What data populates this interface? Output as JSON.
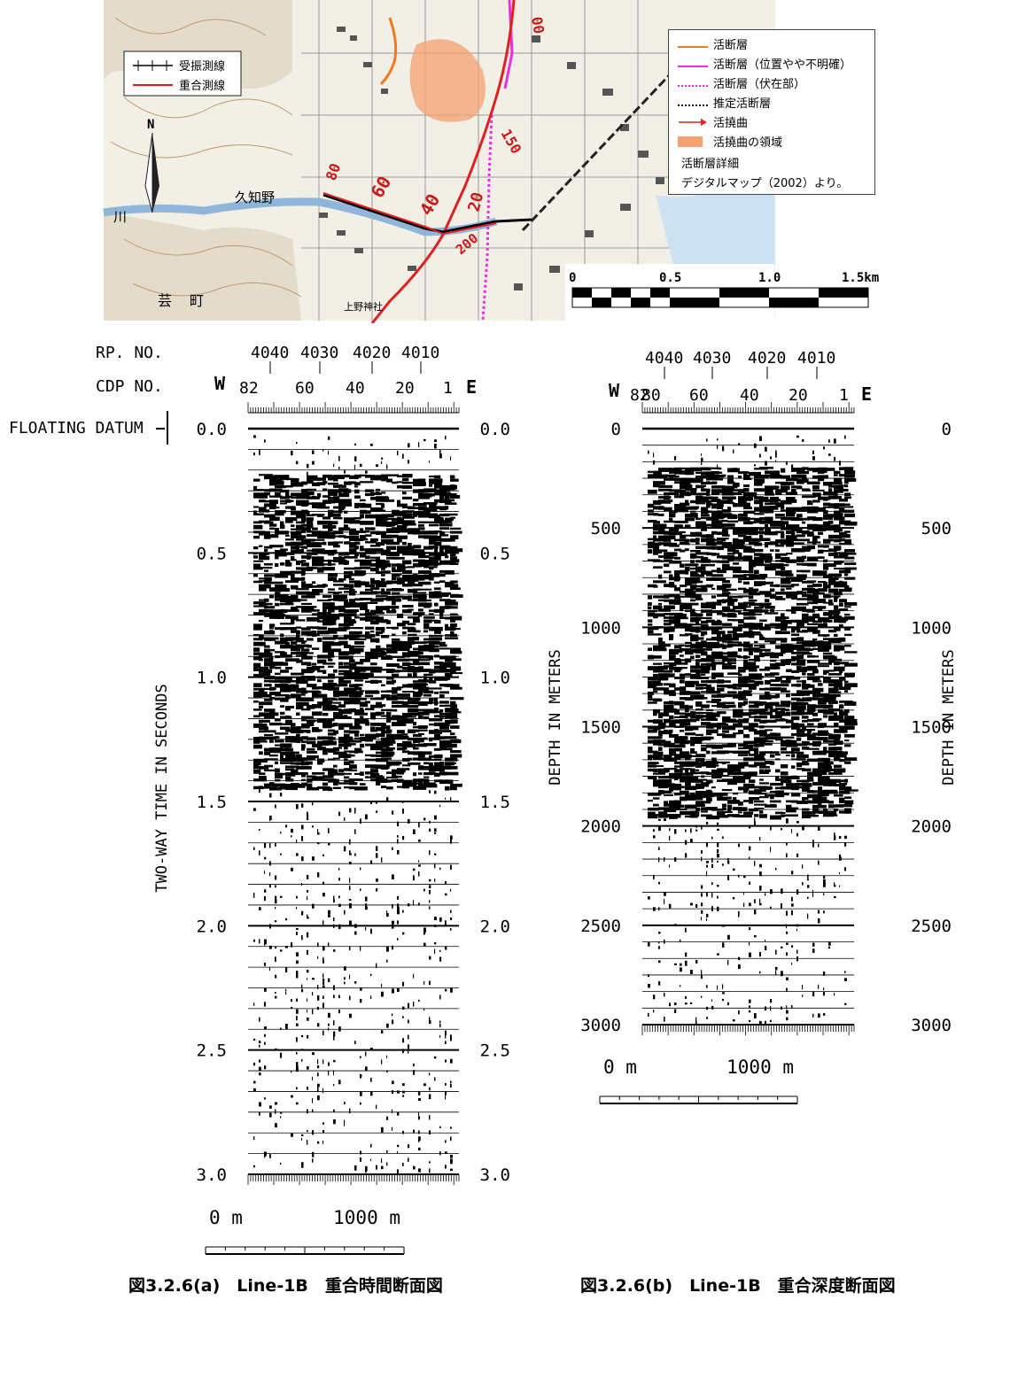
{
  "map": {
    "place_labels": [
      "久知野",
      "川",
      "芸",
      "町",
      "上野神社"
    ],
    "fault_strikes": [
      "60",
      "40",
      "20",
      "200",
      "150",
      "80",
      "00"
    ],
    "north_label": "N",
    "inset_legend": {
      "shot_line": "受振測線",
      "stack_line": "重合測線"
    },
    "legend": {
      "items": [
        {
          "label": "活断層",
          "color": "#ee7a22",
          "style": "solid"
        },
        {
          "label": "活断層（位置やや不明確）",
          "color": "#e830e0",
          "style": "solid"
        },
        {
          "label": "活断層（伏在部）",
          "color": "#e830e0",
          "style": "dotted"
        },
        {
          "label": "推定活断層",
          "color": "#000000",
          "style": "dotted"
        },
        {
          "label": "活撓曲",
          "color": "#e02020",
          "style": "arrow"
        },
        {
          "label": "活撓曲の領域",
          "color": "#f4a070",
          "style": "fill"
        }
      ],
      "note1": "活断層詳細",
      "note2": "デジタルマップ（2002）より。"
    },
    "scale": {
      "ticks": [
        "0",
        "0.5",
        "1.0",
        "1.5km"
      ]
    }
  },
  "time_section": {
    "rp_label": "RP. NO.",
    "cdp_label": "CDP NO.",
    "datum_label": "FLOATING DATUM",
    "west": "W",
    "east": "E",
    "rp_ticks": [
      "4040",
      "4030",
      "4020",
      "4010"
    ],
    "cdp_ticks": [
      "82",
      "60",
      "40",
      "20",
      "1"
    ],
    "y_ticks": [
      "0.0",
      "0.5",
      "1.0",
      "1.5",
      "2.0",
      "2.5",
      "3.0"
    ],
    "ylabel": "TWO-WAY TIME IN SECONDS",
    "ylim": [
      0,
      3.0
    ],
    "scale_left": "0  m",
    "scale_right": "1000  m",
    "caption": "図3.2.6(a)　Line-1B　重合時間断面図"
  },
  "depth_section": {
    "west": "W",
    "east": "E",
    "rp_ticks": [
      "4040",
      "4030",
      "4020",
      "4010"
    ],
    "cdp_ticks": [
      "82",
      "80",
      "60",
      "40",
      "20",
      "1"
    ],
    "y_ticks": [
      "0",
      "500",
      "1000",
      "1500",
      "2000",
      "2500",
      "3000"
    ],
    "ylabel": "DEPTH IN METERS",
    "ylim": [
      0,
      3000
    ],
    "scale_left": "0  m",
    "scale_right": "1000  m",
    "caption": "図3.2.6(b)　Line-1B　重合深度断面図"
  }
}
